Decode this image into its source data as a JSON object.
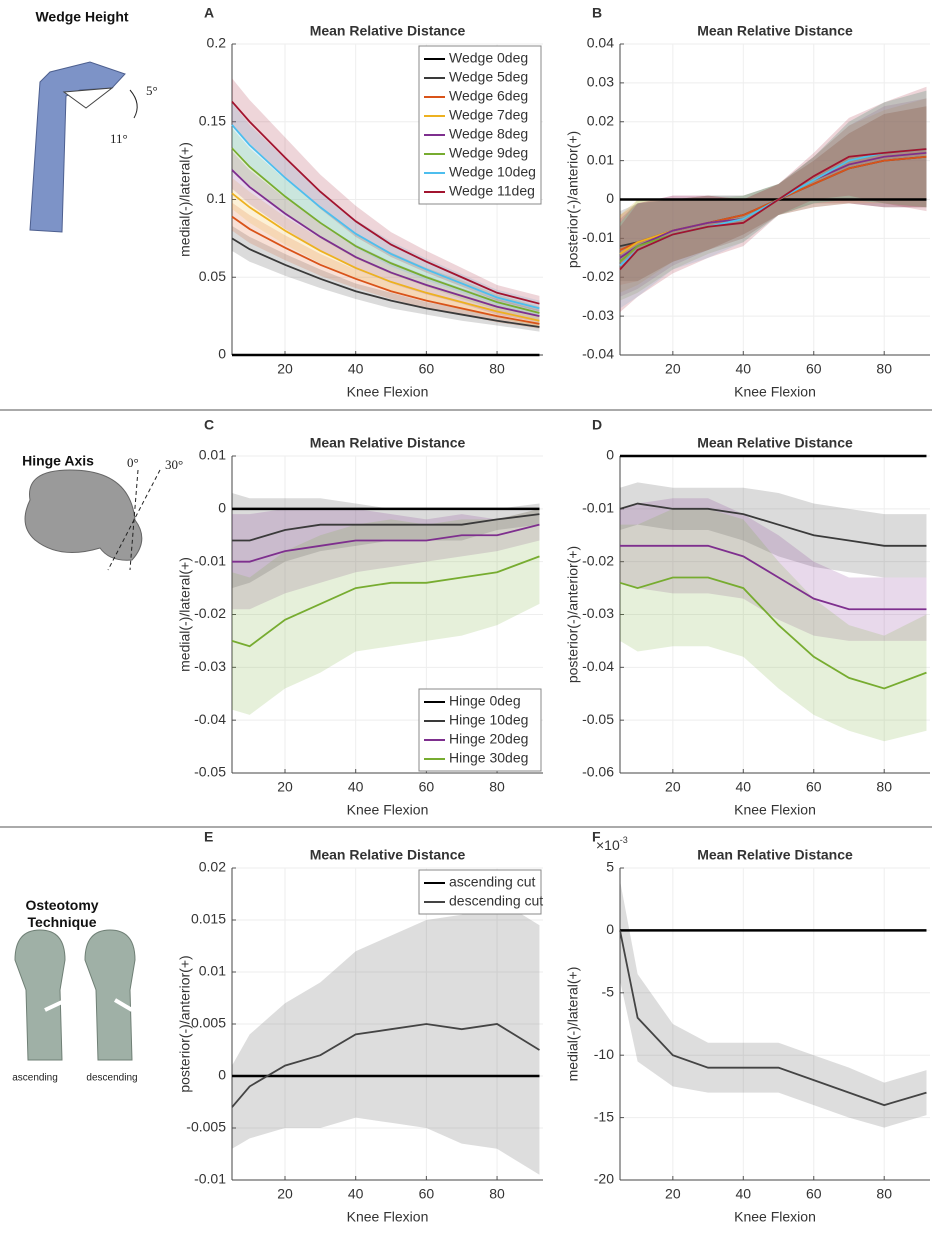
{
  "side_panels": [
    {
      "title": "Wedge Height",
      "annotations": [
        "5°",
        "11°"
      ]
    },
    {
      "title": "Hinge Axis",
      "annotations": [
        "0°",
        "30°"
      ]
    },
    {
      "title": "Osteotomy Technique",
      "annotations": [
        "ascending",
        "descending"
      ]
    }
  ],
  "chart_data": [
    {
      "type": "line",
      "panel": "A",
      "title": "Mean Relative Distance",
      "xlabel": "Knee Flexion",
      "ylabel": "medial(-)/lateral(+)",
      "xlim": [
        5,
        93
      ],
      "xticks": [
        20,
        40,
        60,
        80
      ],
      "ylim": [
        0,
        0.2
      ],
      "yticks": [
        0,
        0.05,
        0.1,
        0.15,
        0.2
      ],
      "grid": true,
      "legend": "upper right",
      "x": [
        5,
        10,
        20,
        30,
        40,
        50,
        60,
        70,
        80,
        92
      ],
      "series": [
        {
          "name": "Wedge 0deg",
          "color": "#000000",
          "values": [
            0,
            0,
            0,
            0,
            0,
            0,
            0,
            0,
            0,
            0
          ]
        },
        {
          "name": "Wedge 5deg",
          "color": "#3a3a3a",
          "values": [
            0.075,
            0.068,
            0.058,
            0.049,
            0.041,
            0.035,
            0.03,
            0.026,
            0.022,
            0.018
          ],
          "std": [
            0.008,
            0.008,
            0.007,
            0.006,
            0.005,
            0.005,
            0.004,
            0.004,
            0.003,
            0.003
          ]
        },
        {
          "name": "Wedge 6deg",
          "color": "#d95319",
          "values": [
            0.089,
            0.081,
            0.069,
            0.058,
            0.049,
            0.041,
            0.035,
            0.03,
            0.025,
            0.02
          ],
          "std": [
            0.009,
            0.009,
            0.008,
            0.007,
            0.006,
            0.005,
            0.005,
            0.004,
            0.004,
            0.003
          ]
        },
        {
          "name": "Wedge 7deg",
          "color": "#edb120",
          "values": [
            0.104,
            0.095,
            0.08,
            0.067,
            0.056,
            0.047,
            0.04,
            0.034,
            0.028,
            0.022
          ],
          "std": [
            0.01,
            0.01,
            0.009,
            0.008,
            0.007,
            0.006,
            0.005,
            0.005,
            0.004,
            0.004
          ]
        },
        {
          "name": "Wedge 8deg",
          "color": "#7e2f8e",
          "values": [
            0.119,
            0.108,
            0.091,
            0.076,
            0.063,
            0.053,
            0.045,
            0.038,
            0.031,
            0.025
          ],
          "std": [
            0.012,
            0.011,
            0.01,
            0.009,
            0.008,
            0.007,
            0.006,
            0.005,
            0.005,
            0.004
          ]
        },
        {
          "name": "Wedge 9deg",
          "color": "#77ac30",
          "values": [
            0.133,
            0.121,
            0.102,
            0.085,
            0.07,
            0.059,
            0.05,
            0.042,
            0.034,
            0.027
          ],
          "std": [
            0.013,
            0.012,
            0.011,
            0.01,
            0.008,
            0.007,
            0.006,
            0.006,
            0.005,
            0.004
          ]
        },
        {
          "name": "Wedge 10deg",
          "color": "#4dbeee",
          "values": [
            0.148,
            0.135,
            0.114,
            0.095,
            0.078,
            0.065,
            0.055,
            0.046,
            0.037,
            0.03
          ],
          "std": [
            0.014,
            0.013,
            0.012,
            0.01,
            0.009,
            0.008,
            0.007,
            0.006,
            0.005,
            0.005
          ]
        },
        {
          "name": "Wedge 11deg",
          "color": "#a2142f",
          "values": [
            0.163,
            0.15,
            0.127,
            0.105,
            0.086,
            0.071,
            0.06,
            0.05,
            0.04,
            0.033
          ],
          "std": [
            0.015,
            0.014,
            0.013,
            0.011,
            0.01,
            0.008,
            0.007,
            0.006,
            0.005,
            0.005
          ]
        }
      ]
    },
    {
      "type": "line",
      "panel": "B",
      "title": "Mean Relative Distance",
      "xlabel": "Knee Flexion",
      "ylabel": "posterior(-)/anterior(+)",
      "xlim": [
        5,
        93
      ],
      "xticks": [
        20,
        40,
        60,
        80
      ],
      "ylim": [
        -0.04,
        0.04
      ],
      "yticks": [
        -0.04,
        -0.03,
        -0.02,
        -0.01,
        0,
        0.01,
        0.02,
        0.03,
        0.04
      ],
      "grid": true,
      "x": [
        5,
        10,
        20,
        30,
        40,
        50,
        60,
        70,
        80,
        92
      ],
      "series": [
        {
          "color": "#000000",
          "values": [
            0,
            0,
            0,
            0,
            0,
            0,
            0,
            0,
            0,
            0
          ]
        },
        {
          "color": "#3a3a3a",
          "values": [
            -0.012,
            -0.011,
            -0.008,
            -0.006,
            -0.004,
            0,
            0.004,
            0.008,
            0.01,
            0.011
          ],
          "std": [
            0.009,
            0.01,
            0.008,
            0.007,
            0.005,
            0.004,
            0.006,
            0.009,
            0.012,
            0.013
          ]
        },
        {
          "color": "#d95319",
          "values": [
            -0.013,
            -0.011,
            -0.008,
            -0.006,
            -0.004,
            0,
            0.004,
            0.008,
            0.01,
            0.011
          ],
          "std": [
            0.009,
            0.01,
            0.008,
            0.007,
            0.005,
            0.004,
            0.006,
            0.009,
            0.012,
            0.013
          ]
        },
        {
          "color": "#edb120",
          "values": [
            -0.014,
            -0.011,
            -0.008,
            -0.006,
            -0.005,
            0,
            0.005,
            0.009,
            0.011,
            0.012
          ],
          "std": [
            0.01,
            0.011,
            0.008,
            0.007,
            0.005,
            0.004,
            0.006,
            0.01,
            0.012,
            0.014
          ]
        },
        {
          "color": "#7e2f8e",
          "values": [
            -0.015,
            -0.012,
            -0.008,
            -0.006,
            -0.005,
            0,
            0.005,
            0.009,
            0.011,
            0.012
          ],
          "std": [
            0.01,
            0.011,
            0.009,
            0.007,
            0.005,
            0.004,
            0.006,
            0.01,
            0.013,
            0.014
          ]
        },
        {
          "color": "#77ac30",
          "values": [
            -0.016,
            -0.012,
            -0.009,
            -0.007,
            -0.005,
            0,
            0.005,
            0.01,
            0.012,
            0.013
          ],
          "std": [
            0.01,
            0.012,
            0.009,
            0.007,
            0.006,
            0.004,
            0.006,
            0.01,
            0.013,
            0.015
          ]
        },
        {
          "color": "#4dbeee",
          "values": [
            -0.017,
            -0.013,
            -0.009,
            -0.007,
            -0.005,
            0,
            0.005,
            0.01,
            0.012,
            0.013
          ],
          "std": [
            0.011,
            0.012,
            0.009,
            0.008,
            0.006,
            0.004,
            0.006,
            0.01,
            0.013,
            0.015
          ]
        },
        {
          "color": "#a2142f",
          "values": [
            -0.018,
            -0.013,
            -0.009,
            -0.007,
            -0.006,
            0,
            0.006,
            0.011,
            0.012,
            0.013
          ],
          "std": [
            0.011,
            0.012,
            0.01,
            0.008,
            0.006,
            0.004,
            0.006,
            0.01,
            0.013,
            0.016
          ]
        }
      ]
    },
    {
      "type": "line",
      "panel": "C",
      "title": "Mean Relative Distance",
      "xlabel": "Knee Flexion",
      "ylabel": "medial(-)/lateral(+)",
      "xlim": [
        5,
        93
      ],
      "xticks": [
        20,
        40,
        60,
        80
      ],
      "ylim": [
        -0.05,
        0.01
      ],
      "yticks": [
        -0.05,
        -0.04,
        -0.03,
        -0.02,
        -0.01,
        0,
        0.01
      ],
      "grid": true,
      "legend": "lower right",
      "x": [
        5,
        10,
        20,
        30,
        40,
        50,
        60,
        70,
        80,
        92
      ],
      "series": [
        {
          "name": "Hinge 0deg",
          "color": "#000000",
          "values": [
            0,
            0,
            0,
            0,
            0,
            0,
            0,
            0,
            0,
            0
          ]
        },
        {
          "name": "Hinge 10deg",
          "color": "#3a3a3a",
          "values": [
            -0.006,
            -0.006,
            -0.004,
            -0.003,
            -0.003,
            -0.003,
            -0.003,
            -0.003,
            -0.002,
            -0.001
          ],
          "std": [
            0.009,
            0.008,
            0.006,
            0.005,
            0.004,
            0.003,
            0.003,
            0.003,
            0.002,
            0.002
          ]
        },
        {
          "name": "Hinge 20deg",
          "color": "#7e2f8e",
          "values": [
            -0.01,
            -0.01,
            -0.008,
            -0.007,
            -0.006,
            -0.006,
            -0.006,
            -0.005,
            -0.005,
            -0.003
          ],
          "std": [
            0.009,
            0.009,
            0.008,
            0.007,
            0.006,
            0.005,
            0.004,
            0.004,
            0.003,
            0.003
          ]
        },
        {
          "name": "Hinge 30deg",
          "color": "#77ac30",
          "values": [
            -0.025,
            -0.026,
            -0.021,
            -0.018,
            -0.015,
            -0.014,
            -0.014,
            -0.013,
            -0.012,
            -0.009
          ],
          "std": [
            0.013,
            0.013,
            0.013,
            0.013,
            0.012,
            0.012,
            0.011,
            0.011,
            0.01,
            0.009
          ]
        }
      ]
    },
    {
      "type": "line",
      "panel": "D",
      "title": "Mean Relative Distance",
      "xlabel": "Knee Flexion",
      "ylabel": "posterior(-)/anterior(+)",
      "xlim": [
        5,
        93
      ],
      "xticks": [
        20,
        40,
        60,
        80
      ],
      "ylim": [
        -0.06,
        0
      ],
      "yticks": [
        -0.06,
        -0.05,
        -0.04,
        -0.03,
        -0.02,
        -0.01,
        0
      ],
      "grid": true,
      "x": [
        5,
        10,
        20,
        30,
        40,
        50,
        60,
        70,
        80,
        92
      ],
      "series": [
        {
          "color": "#000000",
          "values": [
            0,
            0,
            0,
            0,
            0,
            0,
            0,
            0,
            0,
            0
          ]
        },
        {
          "color": "#3a3a3a",
          "values": [
            -0.01,
            -0.009,
            -0.01,
            -0.01,
            -0.011,
            -0.013,
            -0.015,
            -0.016,
            -0.017,
            -0.017
          ],
          "std": [
            0.004,
            0.004,
            0.004,
            0.004,
            0.005,
            0.006,
            0.006,
            0.006,
            0.006,
            0.006
          ]
        },
        {
          "color": "#7e2f8e",
          "values": [
            -0.017,
            -0.017,
            -0.017,
            -0.017,
            -0.019,
            -0.023,
            -0.027,
            -0.029,
            -0.029,
            -0.029
          ],
          "std": [
            0.007,
            0.008,
            0.009,
            0.009,
            0.008,
            0.008,
            0.007,
            0.006,
            0.006,
            0.006
          ]
        },
        {
          "color": "#77ac30",
          "values": [
            -0.024,
            -0.025,
            -0.023,
            -0.023,
            -0.025,
            -0.032,
            -0.038,
            -0.042,
            -0.044,
            -0.041
          ],
          "std": [
            0.011,
            0.012,
            0.013,
            0.013,
            0.013,
            0.012,
            0.011,
            0.01,
            0.01,
            0.011
          ]
        }
      ]
    },
    {
      "type": "line",
      "panel": "E",
      "title": "Mean Relative Distance",
      "xlabel": "Knee Flexion",
      "ylabel": "posterior(-)/anterior(+)",
      "xlim": [
        5,
        93
      ],
      "xticks": [
        20,
        40,
        60,
        80
      ],
      "ylim": [
        -0.01,
        0.02
      ],
      "yticks": [
        -0.01,
        -0.005,
        0,
        0.005,
        0.01,
        0.015,
        0.02
      ],
      "grid": true,
      "legend": "upper right",
      "x": [
        5,
        10,
        20,
        30,
        40,
        50,
        60,
        70,
        80,
        92
      ],
      "series": [
        {
          "name": "ascending cut",
          "color": "#000000",
          "values": [
            0,
            0,
            0,
            0,
            0,
            0,
            0,
            0,
            0,
            0
          ]
        },
        {
          "name": "descending cut",
          "color": "#444444",
          "values": [
            -0.003,
            -0.001,
            0.001,
            0.002,
            0.004,
            0.0045,
            0.005,
            0.0045,
            0.005,
            0.0025
          ],
          "std": [
            0.004,
            0.005,
            0.006,
            0.007,
            0.008,
            0.009,
            0.01,
            0.011,
            0.012,
            0.012
          ]
        }
      ]
    },
    {
      "type": "line",
      "panel": "F",
      "title": "Mean Relative Distance",
      "xlabel": "Knee Flexion",
      "ylabel": "medial(-)/lateral(+)",
      "y_multiplier": "×10",
      "y_multiplier_exp": "-3",
      "xlim": [
        5,
        93
      ],
      "xticks": [
        20,
        40,
        60,
        80
      ],
      "ylim": [
        -20,
        5
      ],
      "yticks": [
        -20,
        -15,
        -10,
        -5,
        0,
        5
      ],
      "grid": true,
      "x": [
        5,
        10,
        20,
        30,
        40,
        50,
        60,
        70,
        80,
        92
      ],
      "series": [
        {
          "color": "#000000",
          "values": [
            0,
            0,
            0,
            0,
            0,
            0,
            0,
            0,
            0,
            0
          ]
        },
        {
          "color": "#444444",
          "values": [
            0,
            -7,
            -10,
            -11,
            -11,
            -11,
            -12,
            -13,
            -14,
            -13
          ],
          "std": [
            4,
            3.5,
            2.5,
            2,
            2,
            2,
            2,
            2,
            1.8,
            1.8
          ]
        }
      ]
    }
  ]
}
